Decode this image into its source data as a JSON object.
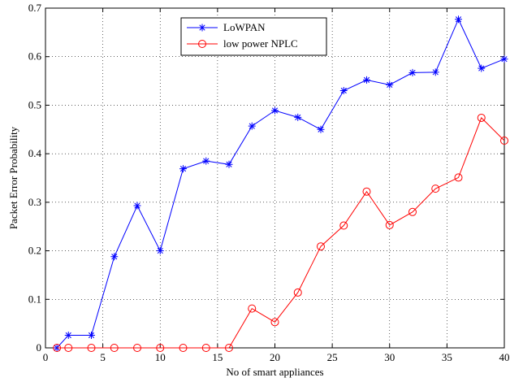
{
  "chart_data": {
    "type": "line",
    "title": "",
    "xlabel": "No of smart appliances",
    "ylabel": "Packet Error Probability",
    "xlim": [
      0,
      40
    ],
    "ylim": [
      0,
      0.7
    ],
    "xticks": [
      0,
      5,
      10,
      15,
      20,
      25,
      30,
      35,
      40
    ],
    "yticks": [
      0,
      0.1,
      0.2,
      0.3,
      0.4,
      0.5,
      0.6,
      0.7
    ],
    "xtick_labels": [
      "0",
      "5",
      "10",
      "15",
      "20",
      "25",
      "30",
      "35",
      "40"
    ],
    "ytick_labels": [
      "0",
      "0.1",
      "0.2",
      "0.3",
      "0.4",
      "0.5",
      "0.6",
      "0.7"
    ],
    "grid": true,
    "legend_position": "top-left",
    "series": [
      {
        "name": "LoWPAN",
        "color": "#0000ff",
        "marker": "asterisk",
        "x": [
          1,
          2,
          4,
          6,
          8,
          10,
          12,
          14,
          16,
          18,
          20,
          22,
          24,
          26,
          28,
          30,
          32,
          34,
          36,
          38,
          40
        ],
        "y": [
          0.0,
          0.026,
          0.026,
          0.188,
          0.293,
          0.2,
          0.369,
          0.385,
          0.378,
          0.457,
          0.489,
          0.475,
          0.45,
          0.53,
          0.552,
          0.542,
          0.567,
          0.568,
          0.677,
          0.576,
          0.595
        ]
      },
      {
        "name": "low power NPLC",
        "color": "#ff0000",
        "marker": "circle",
        "x": [
          1,
          2,
          4,
          6,
          8,
          10,
          12,
          14,
          16,
          18,
          20,
          22,
          24,
          26,
          28,
          30,
          32,
          34,
          36,
          38,
          40
        ],
        "y": [
          0.0,
          0.0,
          0.0,
          0.0,
          0.0,
          0.0,
          0.0,
          0.0,
          0.0,
          0.081,
          0.053,
          0.114,
          0.209,
          0.252,
          0.322,
          0.253,
          0.28,
          0.328,
          0.351,
          0.474,
          0.427
        ]
      }
    ]
  }
}
